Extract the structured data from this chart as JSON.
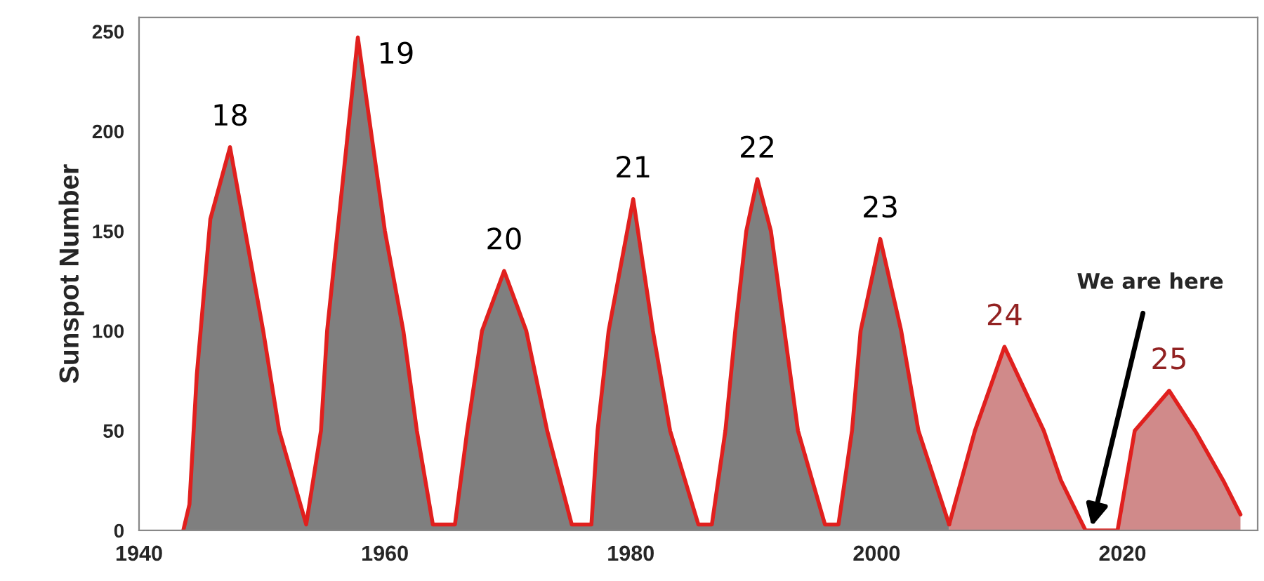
{
  "chart_data": {
    "type": "area",
    "ylabel": "Sunspot Number",
    "xlim": [
      1940,
      2031
    ],
    "xticks": [
      1940,
      1960,
      1980,
      2000,
      2020
    ],
    "ylim": [
      0,
      257
    ],
    "yticks": [
      0,
      50,
      100,
      150,
      200,
      250
    ],
    "grid": false,
    "legend": false,
    "series": [
      {
        "color": "#7f7f7f",
        "x": [
          1943.6,
          1944.1,
          1944.7,
          1945.8,
          1947.4,
          1950.1,
          1951.4,
          1953.6,
          1954.8,
          1955.3,
          1957.8,
          1960.0,
          1961.5,
          1962.6,
          1963.9,
          1965.7,
          1966.7,
          1967.9,
          1969.7,
          1971.5,
          1973.2,
          1975.2,
          1976.8,
          1977.3,
          1978.2,
          1980.2,
          1981.8,
          1983.2,
          1985.5,
          1986.6,
          1987.7,
          1988.5,
          1989.4,
          1990.3,
          1991.4,
          1992.5,
          1993.6,
          1995.8,
          1996.9,
          1998.0,
          1998.7,
          2000.3,
          2002.0,
          2003.4,
          2005.9
        ],
        "values": [
          0,
          13,
          78,
          156,
          192,
          100,
          50,
          3,
          50,
          100,
          247,
          150,
          100,
          50,
          3,
          3,
          50,
          100,
          130,
          100,
          50,
          3,
          3,
          50,
          100,
          166,
          100,
          50,
          3,
          3,
          50,
          100,
          150,
          176,
          150,
          100,
          50,
          3,
          3,
          50,
          100,
          146,
          100,
          50,
          3
        ]
      },
      {
        "color": "#d08a8a",
        "x": [
          2005.9,
          2008.0,
          2010.4,
          2013.6,
          2015.0,
          2017.0,
          2019.6,
          2021.0,
          2023.8,
          2025.9,
          2028.2,
          2029.6
        ],
        "values": [
          3,
          50,
          92,
          50,
          25,
          0,
          0,
          50,
          70,
          50,
          25,
          8
        ]
      }
    ],
    "annotations": [
      {
        "text": "18",
        "x": 1947.4,
        "y": 192
      },
      {
        "text": "19",
        "x": 1957.8,
        "y": 247
      },
      {
        "text": "20",
        "x": 1969.7,
        "y": 130
      },
      {
        "text": "21",
        "x": 1980.2,
        "y": 166
      },
      {
        "text": "22",
        "x": 1990.3,
        "y": 176
      },
      {
        "text": "23",
        "x": 2000.3,
        "y": 146
      },
      {
        "text": "24",
        "x": 2010.4,
        "y": 92
      },
      {
        "text": "25",
        "x": 2023.8,
        "y": 70
      },
      {
        "text": "We are here",
        "x": 2017.5,
        "y": 2
      }
    ]
  }
}
